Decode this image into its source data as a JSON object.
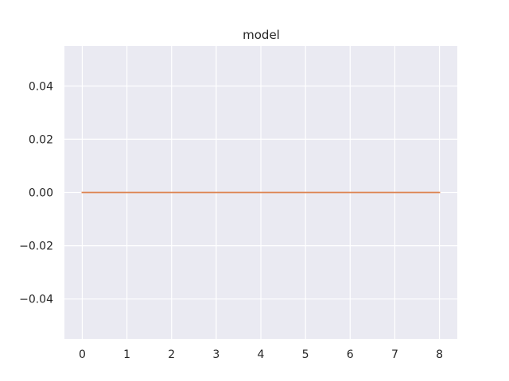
{
  "chart_data": {
    "type": "line",
    "title": "model",
    "xlabel": "",
    "ylabel": "",
    "xlim": [
      -0.4,
      8.4
    ],
    "ylim": [
      -0.055,
      0.055
    ],
    "x_ticks": [
      0,
      1,
      2,
      3,
      4,
      5,
      6,
      7,
      8
    ],
    "x_tick_labels": [
      "0",
      "1",
      "2",
      "3",
      "4",
      "5",
      "6",
      "7",
      "8"
    ],
    "y_ticks": [
      -0.04,
      -0.02,
      0.0,
      0.02,
      0.04
    ],
    "y_tick_labels": [
      "−0.04",
      "−0.02",
      "0.00",
      "0.02",
      "0.04"
    ],
    "grid": true,
    "background_color": "#eaeaf2",
    "grid_color": "#ffffff",
    "series": [
      {
        "color": "#dd8452",
        "x": [
          0,
          1,
          2,
          3,
          4,
          5,
          6,
          7,
          8
        ],
        "y": [
          0,
          0,
          0,
          0,
          0,
          0,
          0,
          0,
          0
        ]
      }
    ]
  }
}
